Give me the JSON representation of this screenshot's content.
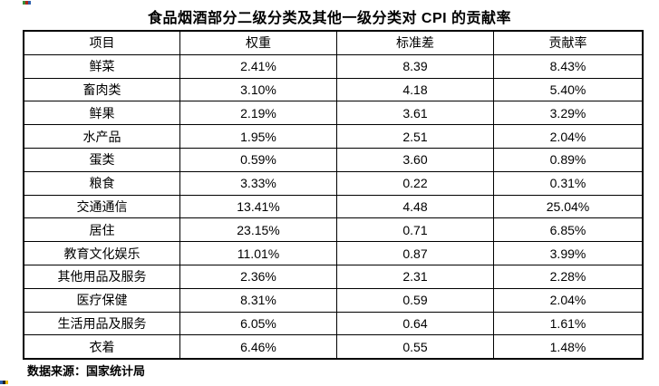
{
  "page_title": "食品烟酒部分二级分类及其他一级分类对 CPI 的贡献率",
  "chart_data": {
    "type": "table",
    "title": "食品烟酒部分二级分类及其他一级分类对 CPI 的贡献率",
    "columns": [
      "项目",
      "权重",
      "标准差",
      "贡献率"
    ],
    "rows": [
      [
        "鲜菜",
        "2.41%",
        "8.39",
        "8.43%"
      ],
      [
        "畜肉类",
        "3.10%",
        "4.18",
        "5.40%"
      ],
      [
        "鲜果",
        "2.19%",
        "3.61",
        "3.29%"
      ],
      [
        "水产品",
        "1.95%",
        "2.51",
        "2.04%"
      ],
      [
        "蛋类",
        "0.59%",
        "3.60",
        "0.89%"
      ],
      [
        "粮食",
        "3.33%",
        "0.22",
        "0.31%"
      ],
      [
        "交通通信",
        "13.41%",
        "4.48",
        "25.04%"
      ],
      [
        "居住",
        "23.15%",
        "0.71",
        "6.85%"
      ],
      [
        "教育文化娱乐",
        "11.01%",
        "0.87",
        "3.99%"
      ],
      [
        "其他用品及服务",
        "2.36%",
        "2.31",
        "2.28%"
      ],
      [
        "医疗保健",
        "8.31%",
        "0.59",
        "2.04%"
      ],
      [
        "生活用品及服务",
        "6.05%",
        "0.64",
        "1.61%"
      ],
      [
        "衣着",
        "6.46%",
        "0.55",
        "1.48%"
      ]
    ],
    "source_note": "数据来源：国家统计局",
    "layout": {
      "border_color": "#000000",
      "background": "#ffffff",
      "text_align": "center"
    }
  }
}
